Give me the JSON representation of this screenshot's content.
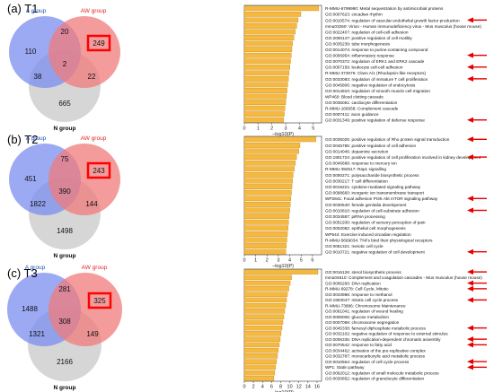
{
  "chart_data": [
    {
      "type": "bar",
      "panel_label": "(a) T1",
      "venn": {
        "a_label": "A group",
        "aw_label": "AW group",
        "n_label": "N group",
        "a_only": 110,
        "a_aw": 20,
        "aw_only": 249,
        "a_n": 38,
        "center": 2,
        "aw_n": 22,
        "n_only": 665
      },
      "xlabel": "−log10(P)",
      "xticks": [
        0,
        1,
        2,
        3,
        4,
        5
      ],
      "xlim": [
        0,
        5.6
      ],
      "categories": [
        "R-MMU-6799990: Metal sequestration by antimicrobial proteins",
        "GO:0007623: circadian rhythm",
        "GO:0010574: regulation of vascular endothelial growth factor production",
        "mmu03260: Virion - Human immunodeficiency virus - Mus musculus (house mouse)",
        "GO:0022407: regulation of cell-cell adhesion",
        "GO:2000147: positive regulation of cell motility",
        "GO:0035239: tube morphogenesis",
        "GO:0014074: response to purine-containing compound",
        "GO:0006954: inflammatory response",
        "GO:0070372: regulation of ERK1 and ERK2 cascade",
        "GO:0007159: leukocyte cell-cell adhesion",
        "R-MMU-373076: Class A/1 (Rhodopsin-like receptors)",
        "GO:0033083: regulation of immature T cell proliferation",
        "GO:0045806: negative regulation of endocytosis",
        "GO:0014910: regulation of smooth muscle cell migration",
        "WP460: Blood clotting cascade",
        "GO:0035051: cardiocyte differentiation",
        "R-MMU-166658: Complement cascade",
        "GO:0007411: axon guidance",
        "GO:0031349: positive regulation of defense response"
      ],
      "values": [
        5.4,
        4.1,
        3.9,
        3.8,
        3.7,
        3.6,
        3.5,
        3.45,
        3.4,
        3.35,
        3.3,
        3.25,
        3.2,
        3.15,
        3.1,
        3.05,
        3.0,
        2.95,
        2.9,
        2.85
      ],
      "arrows": [
        2,
        8,
        10,
        12,
        19
      ],
      "colors": {
        "a": "#7b8ef0",
        "aw": "#f07b7b",
        "n": "#cfcfcf",
        "bar": "#f5b942",
        "bar_edge": "#c98a12",
        "arrow": "#e60000",
        "highlight": "#ff0000"
      }
    },
    {
      "type": "bar",
      "panel_label": "(b) T2",
      "venn": {
        "a_label": "A group",
        "aw_label": "AW group",
        "n_label": "N group",
        "a_only": 451,
        "a_aw": 75,
        "aw_only": 243,
        "a_n": 1822,
        "center": 390,
        "aw_n": 144,
        "n_only": 1498
      },
      "xlabel": "−log10(P)",
      "xticks": [
        0,
        1,
        2,
        3,
        4,
        5,
        6
      ],
      "xlim": [
        0,
        6.8
      ],
      "categories": [
        "GO:0035025: positive regulation of Rho protein signal transduction",
        "GO:0045785: positive regulation of cell adhesion",
        "GO:0014046: dopamine secretion",
        "GO:1901724: positive regulation of cell proliferation involved in kidney development",
        "GO:0046689: response to mercury ion",
        "R-MMU-392517: Rap1 signalling",
        "GO:0000271: polysaccharide biosynthetic process",
        "GO:0030217: T cell differentiation",
        "GO:0019221: cytokine-mediated signaling pathway",
        "GO:0098660: inorganic ion transmembrane transport",
        "WP2841: Focal adhesion PI3K Akt mTOR signaling pathway",
        "GO:0030540: female genitalia development",
        "GO:0010810: regulation of cell-substrate adhesion",
        "GO:0034587: piRNA processing",
        "GO:0051930: regulation of sensory perception of pain",
        "GO:0002082: epithelial cell morphogenesis",
        "WP544: Exercise induced circadian regulation",
        "R-MMU-5669034: TNFs bind their physiological receptors",
        "GO:0051321: meiotic cell cycle",
        "GO:0010721: negative regulation of cell development"
      ],
      "values": [
        6.3,
        4.9,
        4.8,
        4.6,
        4.5,
        4.4,
        4.3,
        4.25,
        4.2,
        4.15,
        4.1,
        4.05,
        4.0,
        3.95,
        3.9,
        3.85,
        3.8,
        3.75,
        3.7,
        3.65
      ],
      "arrows": [
        0,
        3,
        10,
        12,
        19
      ],
      "colors": {
        "a": "#7b8ef0",
        "aw": "#f07b7b",
        "n": "#cfcfcf",
        "bar": "#f5b942",
        "bar_edge": "#c98a12",
        "arrow": "#e60000",
        "highlight": "#ff0000"
      }
    },
    {
      "type": "bar",
      "panel_label": "(c) T3",
      "venn": {
        "a_label": "A group",
        "aw_label": "AW group",
        "n_label": "N group",
        "a_only": 1488,
        "a_aw": 281,
        "aw_only": 325,
        "a_n": 1321,
        "center": 308,
        "aw_n": 149,
        "n_only": 2166
      },
      "xlabel": "−log10(P)",
      "xticks": [
        0,
        2,
        4,
        6,
        8,
        10,
        12,
        14,
        16
      ],
      "xlim": [
        0,
        17
      ],
      "categories": [
        "GO:0016126: sterol biosynthetic process",
        "mmu04610: Complement and coagulation cascades - Mus musculus (house mouse)",
        "GO:0006260: DNA replication",
        "R-MMU-69278: Cell Cycle, Mitotic",
        "GO:0033986: response to methanol",
        "GO:1903047: mitotic cell cycle process",
        "R-MMU-73886: Chromosome Maintenance",
        "GO:0061041: regulation of wound healing",
        "GO:0006006: glucose metabolism",
        "GO:0007059: chromosome segregation",
        "GO:0045338: farnesyl diphosphate metabolic process",
        "GO:0032102: negative regulation of response to external stimulus",
        "GO:0006335: DNA replication-dependent chromatin assembly",
        "GO:0070542: response to fatty acid",
        "GO:0034462: activation of the pre-replicative complex",
        "GO:0032787: monocarboxylic acid metabolic process",
        "GO:0010564: regulation of cell cycle process",
        "WP1: Statin pathway",
        "GO:0062012: regulation of small molecule metabolic process",
        "GO:0030852: regulation of granulocyte differentiation"
      ],
      "values": [
        16.2,
        10.4,
        10.1,
        9.8,
        9.5,
        9.3,
        9.1,
        8.9,
        8.7,
        8.5,
        8.3,
        8.1,
        7.9,
        7.7,
        7.5,
        7.3,
        7.1,
        6.9,
        6.7,
        6.5
      ],
      "arrows": [
        0,
        2,
        3,
        5,
        10,
        12,
        13,
        16,
        17
      ],
      "colors": {
        "a": "#7b8ef0",
        "aw": "#f07b7b",
        "n": "#cfcfcf",
        "bar": "#f5b942",
        "bar_edge": "#c98a12",
        "arrow": "#e60000",
        "highlight": "#ff0000"
      }
    }
  ]
}
